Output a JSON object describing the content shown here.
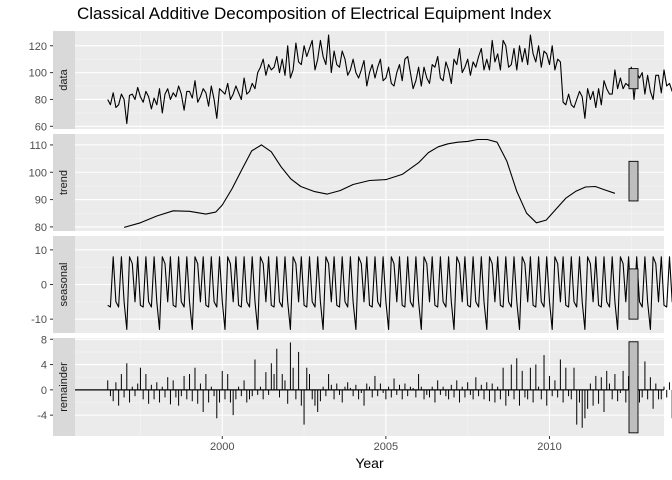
{
  "chart_data": {
    "type": "line",
    "title": "Classical Additive Decomposition of Electrical Equipment Index",
    "xlabel": "Year",
    "xlim": [
      1995.5,
      2013.5
    ],
    "xticks": [
      2000,
      2005,
      2010
    ],
    "grid": true,
    "legend": "none",
    "start": 1996.5,
    "frequency": 12,
    "panels": [
      {
        "name": "data",
        "label": "data",
        "type": "line",
        "ylim": [
          58,
          131
        ],
        "yticks": [
          60,
          80,
          100,
          120
        ],
        "scale_bar": [
          88,
          103
        ],
        "values": [
          80,
          76,
          85,
          74,
          76,
          84,
          80,
          62,
          83,
          84,
          80,
          89,
          82,
          78,
          86,
          82,
          73,
          81,
          76,
          88,
          70,
          84,
          88,
          80,
          85,
          82,
          90,
          84,
          72,
          86,
          86,
          81,
          94,
          78,
          82,
          88,
          85,
          75,
          90,
          80,
          66,
          88,
          86,
          84,
          92,
          80,
          84,
          90,
          85,
          80,
          96,
          84,
          86,
          92,
          88,
          100,
          104,
          110,
          98,
          106,
          102,
          104,
          112,
          100,
          110,
          98,
          120,
          96,
          102,
          122,
          108,
          106,
          120,
          112,
          118,
          124,
          102,
          110,
          124,
          112,
          106,
          128,
          100,
          116,
          106,
          104,
          116,
          110,
          98,
          102,
          110,
          100,
          96,
          102,
          109,
          90,
          100,
          106,
          96,
          104,
          110,
          94,
          96,
          104,
          92,
          90,
          100,
          106,
          94,
          110,
          112,
          100,
          88,
          94,
          104,
          90,
          104,
          96,
          92,
          106,
          104,
          112,
          96,
          94,
          108,
          102,
          92,
          110,
          106,
          118,
          100,
          104,
          110,
          98,
          108,
          104,
          112,
          118,
          102,
          110,
          102,
          124,
          108,
          114,
          102,
          124,
          120,
          104,
          106,
          118,
          102,
          120,
          108,
          118,
          106,
          128,
          114,
          108,
          120,
          104,
          116,
          114,
          106,
          120,
          102,
          110,
          108,
          78,
          76,
          84,
          76,
          74,
          80,
          86,
          82,
          66,
          88,
          80,
          86,
          74,
          88,
          76,
          94,
          88,
          84,
          84,
          102,
          88,
          96,
          88,
          92,
          90,
          104,
          80,
          100,
          96,
          100,
          84,
          98,
          86,
          80,
          98,
          98,
          85,
          102,
          90,
          92,
          86,
          84,
          88
        ]
      },
      {
        "name": "trend",
        "label": "trend",
        "type": "line",
        "ylim": [
          78.5,
          114
        ],
        "yticks": [
          80,
          90,
          100,
          110
        ],
        "scale_bar": [
          89.5,
          104
        ],
        "x": [
          1997.0,
          1997.5,
          1998.0,
          1998.5,
          1999.0,
          1999.5,
          1999.8,
          2000.0,
          2000.3,
          2000.6,
          2000.9,
          2001.2,
          2001.5,
          2001.8,
          2002.1,
          2002.4,
          2002.8,
          2003.2,
          2003.6,
          2004.0,
          2004.5,
          2005.0,
          2005.5,
          2006.0,
          2006.3,
          2006.6,
          2006.9,
          2007.2,
          2007.5,
          2007.8,
          2008.1,
          2008.4,
          2008.7,
          2009.0,
          2009.3,
          2009.6,
          2009.9,
          2010.2,
          2010.5,
          2010.8,
          2011.1,
          2011.4,
          2011.7,
          2012.0
        ],
        "values": [
          79.8,
          81.5,
          84.0,
          85.9,
          85.7,
          84.7,
          85.4,
          88.0,
          94.0,
          101.0,
          107.8,
          110.0,
          107.5,
          102.0,
          97.5,
          94.8,
          93.0,
          92.0,
          93.3,
          95.5,
          97.0,
          97.3,
          99.2,
          103.5,
          107.2,
          109.3,
          110.4,
          111.0,
          111.3,
          112.0,
          112.0,
          111.0,
          104.0,
          93.0,
          85.0,
          81.5,
          82.5,
          86.5,
          90.5,
          93.0,
          94.6,
          94.8,
          93.5,
          92.3
        ]
      },
      {
        "name": "seasonal",
        "label": "seasonal",
        "type": "line",
        "ylim": [
          -14,
          14
        ],
        "yticks": [
          -10,
          0,
          10
        ],
        "scale_bar": [
          -10,
          4.5
        ],
        "pattern": [
          -6,
          -6.5,
          8,
          -5,
          -6.5,
          8,
          -5,
          -13,
          8,
          6,
          -5,
          8
        ]
      },
      {
        "name": "remainder",
        "label": "remainder",
        "type": "bar",
        "ylim": [
          -7.3,
          8.2
        ],
        "yticks": [
          -4,
          0,
          4,
          8
        ],
        "scale_bar": [
          -6.8,
          7.6
        ],
        "values": [
          1.5,
          -1,
          -1.8,
          1.2,
          -2.5,
          2.5,
          -1.2,
          4.2,
          -2,
          0.5,
          -1,
          1,
          3.5,
          -1.5,
          2.5,
          -2.2,
          0.8,
          -1.5,
          1.2,
          -2,
          0.5,
          -1.2,
          2,
          -2.3,
          1.5,
          -1.2,
          -2.5,
          -1,
          2.2,
          -1.5,
          2.5,
          -1.8,
          3.5,
          -2.2,
          1,
          -3.5,
          2.5,
          -2,
          0.5,
          -1,
          -4.5,
          -2,
          3,
          -1.5,
          2.5,
          -2,
          -4,
          -1.5,
          0.5,
          -1,
          1.5,
          -2,
          -1.5,
          -1,
          4.8,
          -0.8,
          0.5,
          -1.5,
          2.8,
          -0.8,
          4.2,
          2.5,
          6.5,
          -1.2,
          2.5,
          1.5,
          -2.2,
          7.5,
          3.5,
          -1.5,
          6,
          -2.5,
          -5.5,
          3.5,
          2.5,
          -1.5,
          -2.5,
          -3.5,
          -1.8,
          0.5,
          -1,
          2.5,
          0.8,
          -1.5,
          1,
          -0.8,
          -2,
          0.5,
          1.2,
          0.3,
          -1,
          0.8,
          -1.5,
          -0.5,
          -2.5,
          1,
          0.5,
          -1.2,
          2.2,
          -1,
          1,
          -0.5,
          -1.5,
          0.5,
          -1.2,
          1.8,
          -0.8,
          0.8,
          -1.5,
          1,
          -1,
          0.5,
          0.3,
          -1.2,
          2.5,
          0.5,
          -1.5,
          -0.8,
          -1.2,
          0.5,
          -2,
          1.5,
          -0.8,
          0.5,
          -1,
          -1.5,
          0.8,
          -1.2,
          1.5,
          -2,
          0.5,
          -1.2,
          1.2,
          -0.8,
          -1.5,
          2,
          -1,
          0.8,
          -1.5,
          1.2,
          -1.8,
          1,
          -2,
          0.5,
          -1.5,
          3.5,
          -2.5,
          -1,
          4,
          -1.5,
          5,
          -2.5,
          3,
          -1.2,
          -1.5,
          3.5,
          -2,
          4,
          0.5,
          -1.5,
          5.5,
          -2.5,
          2.2,
          -1,
          1.5,
          -1.2,
          4.8,
          -2,
          3.5,
          -1,
          -1.5,
          3.5,
          -5.5,
          -2,
          -6,
          -4.5,
          -3,
          1,
          -2.5,
          2.2,
          -2.2,
          2,
          -3.5,
          3,
          1,
          -1.5,
          2.5,
          -1.8,
          -0.5,
          3,
          -2,
          2.2,
          -3.5,
          4,
          1.5,
          -2,
          -1.2,
          4.5,
          -1.5,
          2,
          -3,
          1,
          -1.5,
          -1.5,
          0.5,
          -1.2,
          1.2,
          -4.5,
          2.5,
          -2,
          1,
          0.5,
          -1.2
        ]
      }
    ]
  }
}
